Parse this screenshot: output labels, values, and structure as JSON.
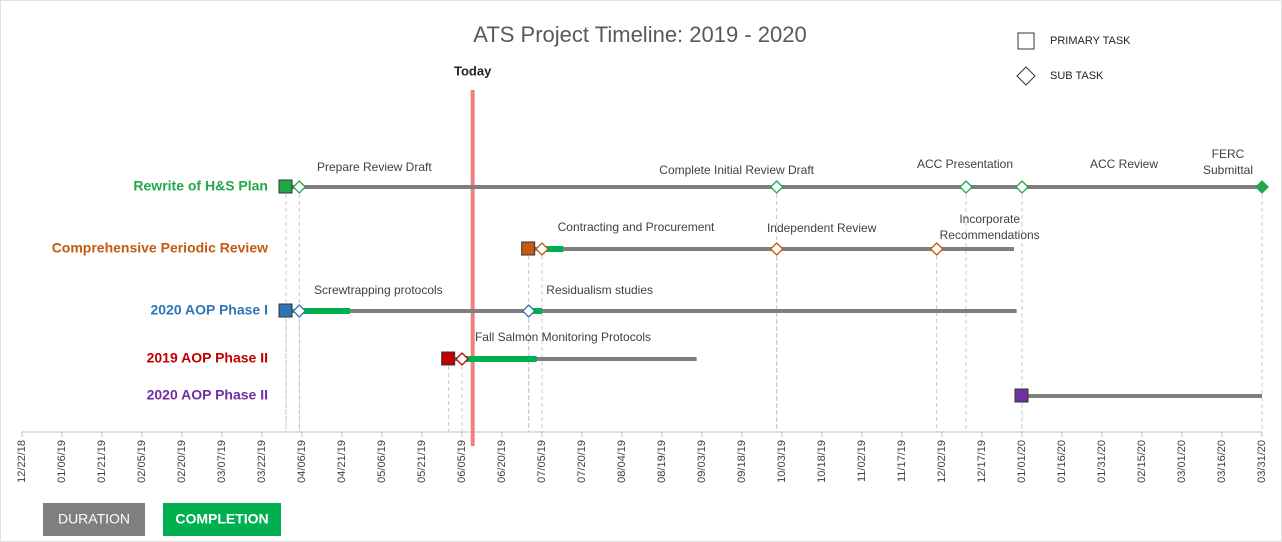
{
  "chart_data": {
    "type": "gantt",
    "title": "ATS Project Timeline: 2019 - 2020",
    "today": {
      "label": "Today",
      "date": "2019-06-09",
      "color": "#f08080"
    },
    "legend": [
      {
        "name": "PRIMARY TASK",
        "shape": "square"
      },
      {
        "name": "SUB TASK",
        "shape": "diamond"
      }
    ],
    "bar_legend": [
      {
        "name": "DURATION",
        "color": "#7f7f7f"
      },
      {
        "name": "COMPLETION",
        "color": "#00b050"
      }
    ],
    "xlim": [
      "2018-12-22",
      "2020-03-31"
    ],
    "xticks": [
      {
        "value": "2018-12-22",
        "label": "12/22/18"
      },
      {
        "value": "2019-01-06",
        "label": "01/06/19"
      },
      {
        "value": "2019-01-21",
        "label": "01/21/19"
      },
      {
        "value": "2019-02-05",
        "label": "02/05/19"
      },
      {
        "value": "2019-02-20",
        "label": "02/20/19"
      },
      {
        "value": "2019-03-07",
        "label": "03/07/19"
      },
      {
        "value": "2019-03-22",
        "label": "03/22/19"
      },
      {
        "value": "2019-04-06",
        "label": "04/06/19"
      },
      {
        "value": "2019-04-21",
        "label": "04/21/19"
      },
      {
        "value": "2019-05-06",
        "label": "05/06/19"
      },
      {
        "value": "2019-05-21",
        "label": "05/21/19"
      },
      {
        "value": "2019-06-05",
        "label": "06/05/19"
      },
      {
        "value": "2019-06-20",
        "label": "06/20/19"
      },
      {
        "value": "2019-07-05",
        "label": "07/05/19"
      },
      {
        "value": "2019-07-20",
        "label": "07/20/19"
      },
      {
        "value": "2019-08-04",
        "label": "08/04/19"
      },
      {
        "value": "2019-08-19",
        "label": "08/19/19"
      },
      {
        "value": "2019-09-03",
        "label": "09/03/19"
      },
      {
        "value": "2019-09-18",
        "label": "09/18/19"
      },
      {
        "value": "2019-10-03",
        "label": "10/03/19"
      },
      {
        "value": "2019-10-18",
        "label": "10/18/19"
      },
      {
        "value": "2019-11-02",
        "label": "11/02/19"
      },
      {
        "value": "2019-11-17",
        "label": "11/17/19"
      },
      {
        "value": "2019-12-02",
        "label": "12/02/19"
      },
      {
        "value": "2019-12-17",
        "label": "12/17/19"
      },
      {
        "value": "2020-01-01",
        "label": "01/01/20"
      },
      {
        "value": "2020-01-16",
        "label": "01/16/20"
      },
      {
        "value": "2020-01-31",
        "label": "01/31/20"
      },
      {
        "value": "2020-02-15",
        "label": "02/15/20"
      },
      {
        "value": "2020-03-01",
        "label": "03/01/20"
      },
      {
        "value": "2020-03-16",
        "label": "03/16/20"
      },
      {
        "value": "2020-03-31",
        "label": "03/31/20"
      }
    ],
    "tasks": [
      {
        "name": "Rewrite of H&S Plan",
        "color": "#22a84a",
        "start": "2019-03-31",
        "end": "2020-03-31",
        "subtasks": [
          {
            "name": "Prepare Review Draft",
            "date": "2019-04-05"
          },
          {
            "name": "Complete Initial Review Draft",
            "date": "2019-10-01"
          },
          {
            "name": "ACC Presentation",
            "date": "2019-12-11"
          },
          {
            "name": "ACC Review",
            "date": "2020-01-01"
          },
          {
            "name": "FERC Submittal",
            "date": "2020-03-31",
            "filled": true
          }
        ],
        "completion": []
      },
      {
        "name": "Comprehensive Periodic Review",
        "color": "#c55a11",
        "start": "2019-06-30",
        "end": "2019-12-29",
        "subtasks": [
          {
            "name": "Contracting and Procurement",
            "date": "2019-07-05"
          },
          {
            "name": "Independent Review",
            "date": "2019-10-01"
          },
          {
            "name": "Incorporate Recommendations",
            "date": "2019-11-30"
          }
        ],
        "completion": [
          [
            "2019-07-05",
            "2019-07-13"
          ]
        ]
      },
      {
        "name": "2020 AOP Phase I",
        "color": "#2e75b6",
        "start": "2019-03-31",
        "end": "2019-12-30",
        "subtasks": [
          {
            "name": "Screwtrapping protocols",
            "date": "2019-04-05"
          },
          {
            "name": "Residualism studies",
            "date": "2019-06-30"
          }
        ],
        "completion": [
          [
            "2019-04-05",
            "2019-04-24"
          ],
          [
            "2019-06-30",
            "2019-07-05"
          ]
        ]
      },
      {
        "name": "2019 AOP Phase II",
        "color": "#c00000",
        "start": "2019-05-31",
        "end": "2019-09-01",
        "subtasks": [
          {
            "name": "Fall Salmon Monitoring Protocols",
            "date": "2019-06-05"
          }
        ],
        "completion": [
          [
            "2019-06-05",
            "2019-07-03"
          ]
        ]
      },
      {
        "name": "2020 AOP Phase II",
        "color": "#7030a0",
        "start": "2020-01-01",
        "end": "2020-03-31",
        "subtasks": [],
        "completion": []
      }
    ]
  }
}
